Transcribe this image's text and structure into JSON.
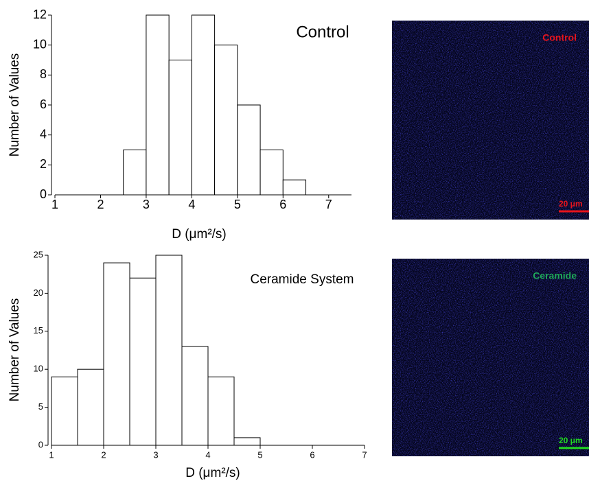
{
  "chart_data": [
    {
      "type": "histogram",
      "annotation": "Control",
      "xlabel": "D (μm²/s)",
      "ylabel": "Number of Values",
      "bins": [
        1,
        1.5,
        2,
        2.5,
        3,
        3.5,
        4,
        4.5,
        5,
        5.5,
        6,
        6.5,
        7,
        7.5
      ],
      "values": [
        0,
        0,
        0,
        3,
        12,
        9,
        12,
        10,
        6,
        3,
        1,
        0,
        0
      ],
      "color": "#ffffff",
      "xlim": [
        1,
        7.5
      ],
      "xticks": [
        1,
        2,
        3,
        4,
        5,
        6,
        7
      ],
      "ylim": [
        0,
        12
      ],
      "yticks": [
        0,
        2,
        4,
        6,
        8,
        10,
        12
      ]
    },
    {
      "type": "histogram",
      "annotation": "Ceramide System",
      "xlabel": "D (μm²/s)",
      "ylabel": "Number of Values",
      "bins": [
        1,
        1.5,
        2,
        2.5,
        3,
        3.5,
        4,
        4.5,
        5,
        5.5,
        6,
        6.5,
        7
      ],
      "values": [
        9,
        10,
        24,
        22,
        25,
        13,
        9,
        1,
        0,
        0,
        0,
        0
      ],
      "color": "#ffffff",
      "xlim": [
        1,
        7
      ],
      "xticks": [
        1,
        2,
        3,
        4,
        5,
        6,
        7
      ],
      "ylim": [
        0,
        25
      ],
      "yticks": [
        0,
        5,
        10,
        15,
        20,
        25
      ]
    }
  ],
  "images": [
    {
      "label": "Control",
      "label_color": "#e8141c",
      "scale": "20 μm"
    },
    {
      "label": "Ceramide",
      "label_color": "#1fa85a",
      "scale": "20 μm",
      "scale_color": "#22dd22"
    }
  ]
}
